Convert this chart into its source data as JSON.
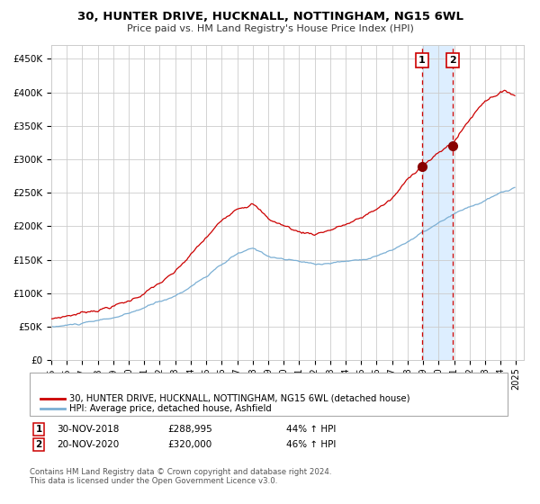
{
  "title": "30, HUNTER DRIVE, HUCKNALL, NOTTINGHAM, NG15 6WL",
  "subtitle": "Price paid vs. HM Land Registry's House Price Index (HPI)",
  "ylim": [
    0,
    470000
  ],
  "yticks": [
    0,
    50000,
    100000,
    150000,
    200000,
    250000,
    300000,
    350000,
    400000,
    450000
  ],
  "ytick_labels": [
    "£0",
    "£50K",
    "£100K",
    "£150K",
    "£200K",
    "£250K",
    "£300K",
    "£350K",
    "£400K",
    "£450K"
  ],
  "line1_color": "#cc0000",
  "line2_color": "#7bafd4",
  "point_color": "#880000",
  "marker1_idx": 287,
  "marker1_value": 288995,
  "marker2_idx": 311,
  "marker2_value": 320000,
  "vline_color": "#cc0000",
  "shade_color": "#ddeeff",
  "legend1_label": "30, HUNTER DRIVE, HUCKNALL, NOTTINGHAM, NG15 6WL (detached house)",
  "legend2_label": "HPI: Average price, detached house, Ashfield",
  "annot1_date": "30-NOV-2018",
  "annot1_price": "£288,995",
  "annot1_hpi": "44% ↑ HPI",
  "annot2_date": "20-NOV-2020",
  "annot2_price": "£320,000",
  "annot2_hpi": "46% ↑ HPI",
  "footer": "Contains HM Land Registry data © Crown copyright and database right 2024.\nThis data is licensed under the Open Government Licence v3.0.",
  "background_color": "#ffffff",
  "grid_color": "#cccccc",
  "n_months": 360,
  "start_year": 1995
}
